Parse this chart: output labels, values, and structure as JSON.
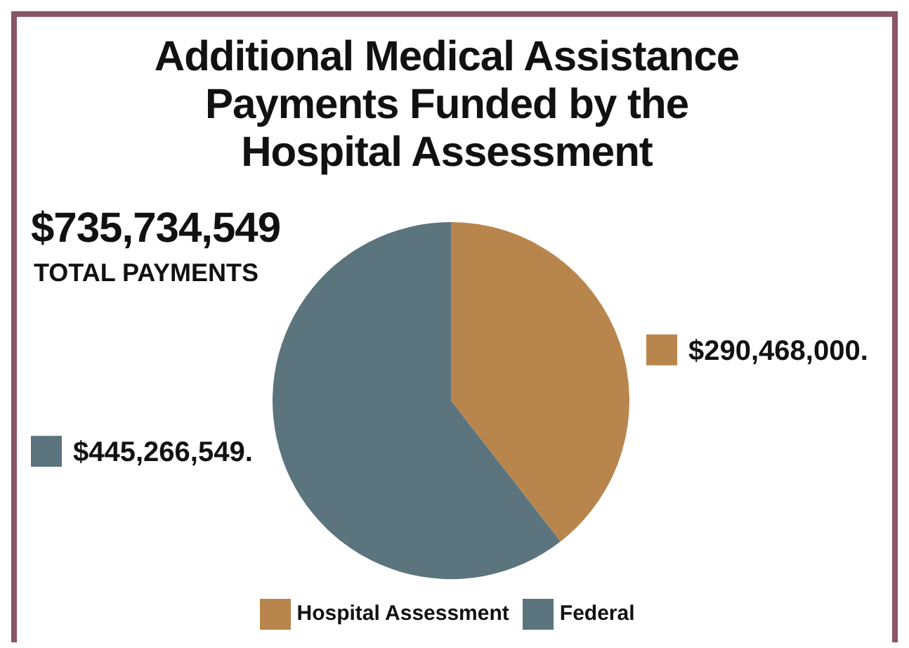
{
  "chart_data": {
    "type": "pie",
    "title": "Additional Medical Assistance Payments Funded by the Hospital Assessment",
    "categories": [
      "Hospital Assessment",
      "Federal"
    ],
    "values": [
      290468000,
      445266549
    ],
    "colors": [
      "#b8864d",
      "#5b747e"
    ],
    "value_labels": [
      "$290,468,000.",
      "$445,266,549."
    ],
    "annotations": [
      "$735,734,549",
      "TOTAL PAYMENTS"
    ],
    "legend": "bottom"
  }
}
